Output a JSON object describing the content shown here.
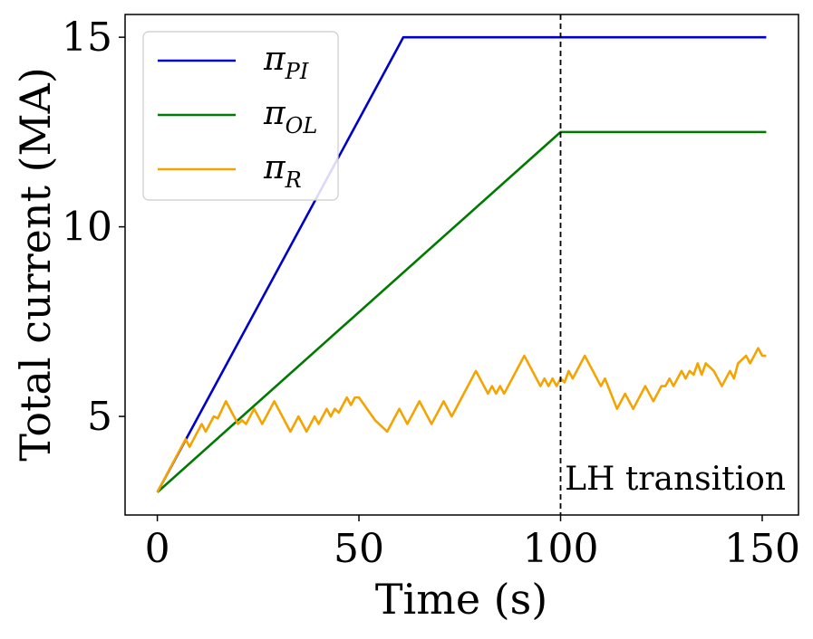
{
  "chart_data": {
    "type": "line",
    "xlabel": "Time (s)",
    "ylabel": "Total current (MA)",
    "xlim": [
      -8,
      159
    ],
    "ylim": [
      2.4,
      15.6
    ],
    "xticks": [
      0,
      50,
      100,
      150
    ],
    "yticks": [
      5,
      10,
      15
    ],
    "grid": false,
    "legend_position": "top-left",
    "series": [
      {
        "name": "π_PI",
        "label_main": "π",
        "label_sub": "PI",
        "color": "#0000cc",
        "points": [
          [
            0,
            3.0
          ],
          [
            60,
            14.8
          ],
          [
            61,
            15.0
          ],
          [
            151,
            15.0
          ]
        ]
      },
      {
        "name": "π_OL",
        "label_main": "π",
        "label_sub": "OL",
        "color": "#007a00",
        "points": [
          [
            0,
            3.0
          ],
          [
            100,
            12.5
          ],
          [
            151,
            12.5
          ]
        ]
      },
      {
        "name": "π_R",
        "label_main": "π",
        "label_sub": "R",
        "color": "#f5a300",
        "points": [
          [
            0,
            3.0
          ],
          [
            7,
            4.4
          ],
          [
            8,
            4.2
          ],
          [
            11,
            4.8
          ],
          [
            12,
            4.6
          ],
          [
            14,
            5.0
          ],
          [
            15,
            4.95
          ],
          [
            17,
            5.4
          ],
          [
            20,
            4.8
          ],
          [
            21,
            4.9
          ],
          [
            22,
            4.8
          ],
          [
            24,
            5.2
          ],
          [
            26,
            4.8
          ],
          [
            29,
            5.4
          ],
          [
            33,
            4.6
          ],
          [
            35,
            5.0
          ],
          [
            37,
            4.6
          ],
          [
            39,
            5.0
          ],
          [
            40,
            4.8
          ],
          [
            42,
            5.2
          ],
          [
            43,
            5.0
          ],
          [
            44,
            5.2
          ],
          [
            45,
            5.1
          ],
          [
            47,
            5.5
          ],
          [
            48,
            5.3
          ],
          [
            49,
            5.5
          ],
          [
            50,
            5.5
          ],
          [
            52,
            5.2
          ],
          [
            54,
            4.9
          ],
          [
            57,
            4.6
          ],
          [
            60,
            5.2
          ],
          [
            62,
            4.8
          ],
          [
            65,
            5.4
          ],
          [
            68,
            4.8
          ],
          [
            71,
            5.4
          ],
          [
            73,
            5.0
          ],
          [
            79,
            6.2
          ],
          [
            82,
            5.6
          ],
          [
            83,
            5.8
          ],
          [
            84,
            5.6
          ],
          [
            85,
            5.8
          ],
          [
            86,
            5.6
          ],
          [
            91,
            6.6
          ],
          [
            95,
            5.8
          ],
          [
            96,
            6.0
          ],
          [
            97,
            5.8
          ],
          [
            98,
            6.0
          ],
          [
            99,
            5.8
          ],
          [
            100,
            6.0
          ],
          [
            101,
            5.9
          ],
          [
            102,
            6.2
          ],
          [
            103,
            6.0
          ],
          [
            106,
            6.6
          ],
          [
            110,
            5.8
          ],
          [
            111,
            6.0
          ],
          [
            114,
            5.2
          ],
          [
            116,
            5.6
          ],
          [
            118,
            5.2
          ],
          [
            121,
            5.8
          ],
          [
            123,
            5.4
          ],
          [
            125,
            5.8
          ],
          [
            126,
            5.8
          ],
          [
            127,
            6.0
          ],
          [
            128,
            5.8
          ],
          [
            129,
            6.0
          ],
          [
            130,
            6.2
          ],
          [
            131,
            6.0
          ],
          [
            132,
            6.2
          ],
          [
            133,
            6.1
          ],
          [
            134,
            6.4
          ],
          [
            135,
            6.1
          ],
          [
            136,
            6.4
          ],
          [
            137,
            6.3
          ],
          [
            138,
            6.2
          ],
          [
            139,
            6.0
          ],
          [
            140,
            5.8
          ],
          [
            141,
            6.0
          ],
          [
            142,
            6.2
          ],
          [
            143,
            6.0
          ],
          [
            144,
            6.4
          ],
          [
            146,
            6.6
          ],
          [
            147,
            6.4
          ],
          [
            148,
            6.6
          ],
          [
            149,
            6.8
          ],
          [
            150,
            6.6
          ],
          [
            151,
            6.6
          ]
        ]
      }
    ],
    "annotations": [
      {
        "type": "vline",
        "x": 100,
        "style": "dashed",
        "color": "#000000"
      },
      {
        "type": "text",
        "text": "LH transition",
        "x": 105,
        "y": 3.2
      }
    ]
  }
}
